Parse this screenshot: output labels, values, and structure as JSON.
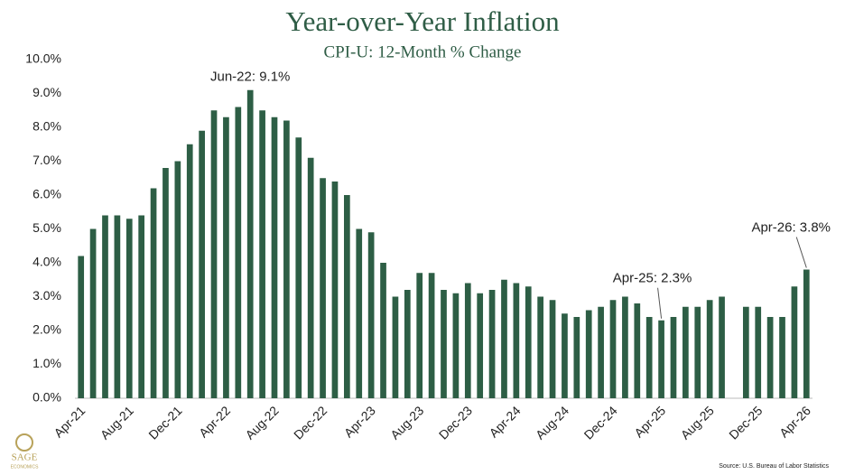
{
  "chart_data": {
    "type": "bar",
    "title": "Year-over-Year Inflation",
    "subtitle": "CPI-U: 12-Month % Change",
    "source": "Source: U.S. Bureau of Labor Statistics",
    "color": "#2d5e45",
    "categories": [
      "Apr-21",
      null,
      null,
      null,
      "Aug-21",
      null,
      null,
      null,
      "Dec-21",
      null,
      null,
      null,
      "Apr-22",
      null,
      null,
      null,
      "Aug-22",
      null,
      null,
      null,
      "Dec-22",
      null,
      null,
      null,
      "Apr-23",
      null,
      null,
      null,
      "Aug-23",
      null,
      null,
      null,
      "Dec-23",
      null,
      null,
      null,
      "Apr-24",
      null,
      null,
      null,
      "Aug-24",
      null,
      null,
      null,
      "Dec-24",
      null,
      null,
      null,
      "Apr-25",
      null,
      null,
      null,
      "Aug-25",
      null,
      null,
      null,
      "Dec-25",
      null,
      null,
      null,
      "Apr-26"
    ],
    "values": [
      4.2,
      5.0,
      5.4,
      5.4,
      5.3,
      5.4,
      6.2,
      6.8,
      7.0,
      7.5,
      7.9,
      8.5,
      8.3,
      8.6,
      9.1,
      8.5,
      8.3,
      8.2,
      7.7,
      7.1,
      6.5,
      6.4,
      6.0,
      5.0,
      4.9,
      4.0,
      3.0,
      3.2,
      3.7,
      3.7,
      3.2,
      3.1,
      3.4,
      3.1,
      3.2,
      3.5,
      3.4,
      3.3,
      3.0,
      2.9,
      2.5,
      2.4,
      2.6,
      2.7,
      2.9,
      3.0,
      2.8,
      2.4,
      2.3,
      2.4,
      2.7,
      2.7,
      2.9,
      3.0,
      null,
      2.7,
      2.7,
      2.4,
      2.4,
      3.3,
      3.8
    ],
    "value_labels": [
      null,
      null,
      null,
      null,
      null,
      null,
      null,
      null,
      null,
      null,
      null,
      null,
      null,
      null,
      "Jun-22: 9.1%",
      null,
      null,
      null,
      null,
      null,
      null,
      null,
      null,
      null,
      null,
      null,
      null,
      null,
      null,
      null,
      null,
      null,
      null,
      null,
      null,
      null,
      null,
      null,
      null,
      null,
      null,
      null,
      null,
      null,
      null,
      null,
      null,
      null,
      "Apr-25: 2.3%",
      null,
      null,
      null,
      null,
      null,
      null,
      null,
      null,
      null,
      null,
      null,
      "Apr-26: 3.8%"
    ],
    "ylim": [
      0,
      10
    ],
    "yticks": [
      {
        "value": 0,
        "label": "0.0%"
      },
      {
        "value": 1,
        "label": "1.0%"
      },
      {
        "value": 2,
        "label": "2.0%"
      },
      {
        "value": 3,
        "label": "3.0%"
      },
      {
        "value": 4,
        "label": "4.0%"
      },
      {
        "value": 5,
        "label": "5.0%"
      },
      {
        "value": 6,
        "label": "6.0%"
      },
      {
        "value": 7,
        "label": "7.0%"
      },
      {
        "value": 8,
        "label": "8.0%"
      },
      {
        "value": 9,
        "label": "9.0%"
      },
      {
        "value": 10,
        "label": "10.0%"
      }
    ],
    "grid": false
  },
  "logo": {
    "name": "SAGE",
    "tagline": "ECONOMICS"
  }
}
